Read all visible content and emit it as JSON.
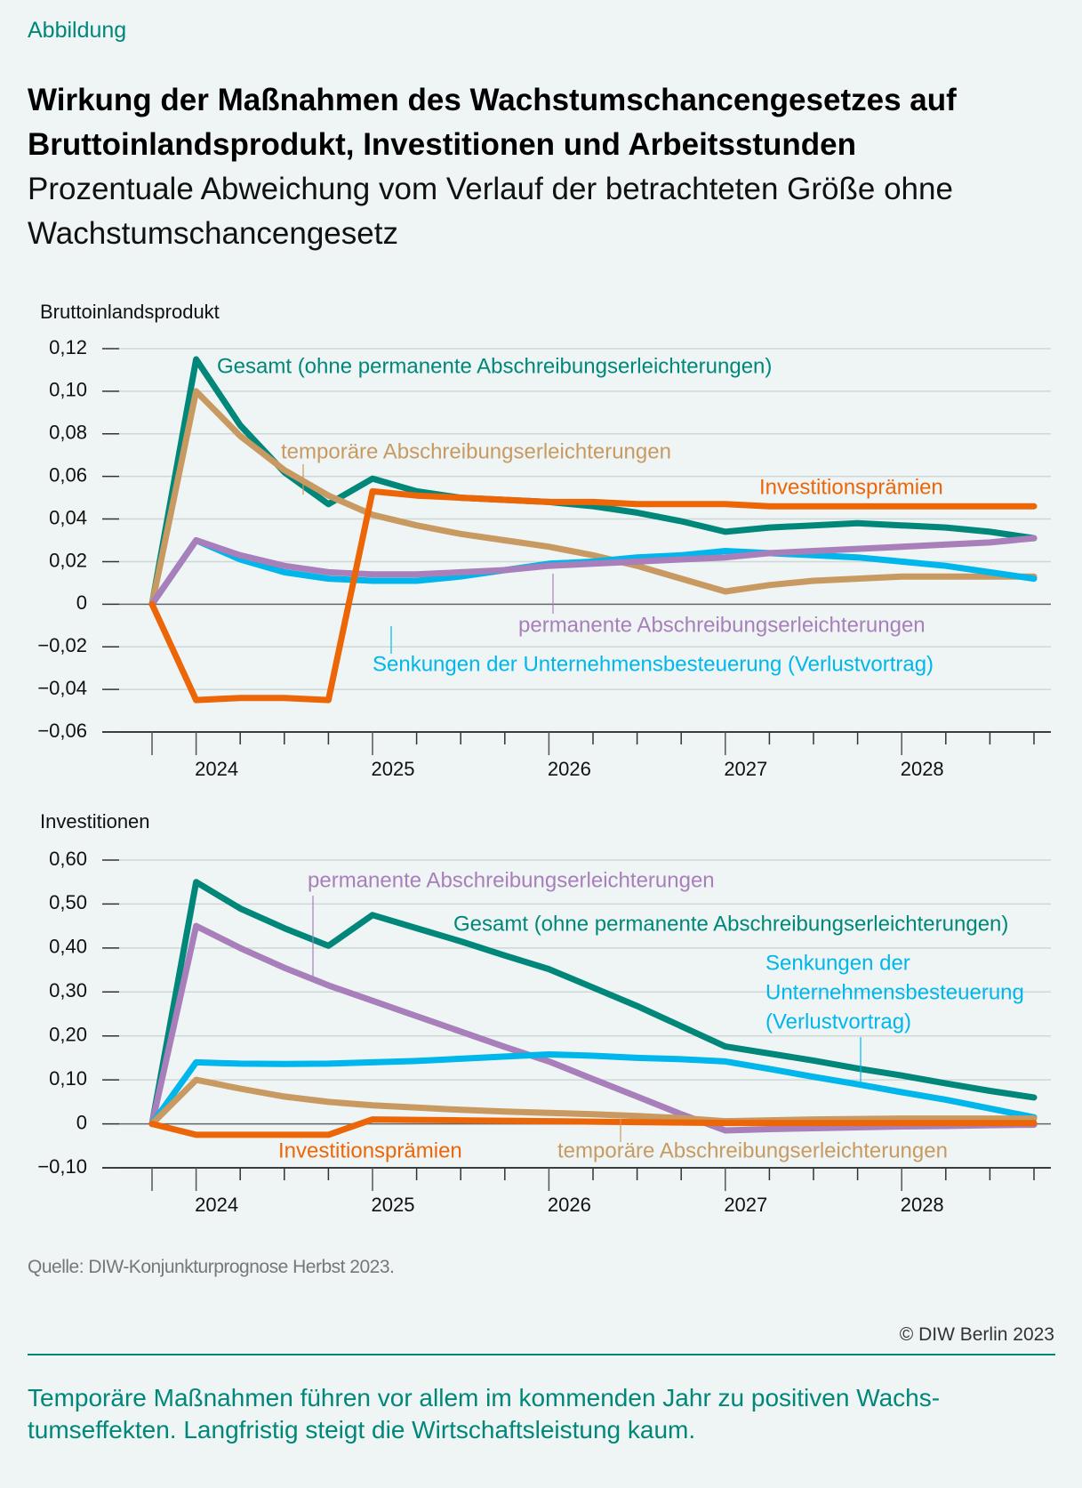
{
  "header": {
    "kicker": "Abbildung",
    "title": "Wirkung der Maßnahmen des Wachstumschancengesetzes auf Bruttoinlandsprodukt, Investitionen und Arbeitsstunden",
    "subtitle": "Prozentuale Abweichung vom Verlauf der betrachteten Größe ohne Wachstumschancengesetz"
  },
  "colors": {
    "gesamt": "#00877a",
    "temporaer": "#c89a62",
    "investitionspraemien": "#ec6608",
    "permanent": "#a87fba",
    "senkungen": "#00b6ea",
    "accent": "#00877a",
    "background": "#eef5f4"
  },
  "chart_data": [
    {
      "type": "line",
      "title": "Bruttoinlandsprodukt",
      "ylim": [
        -0.06,
        0.12
      ],
      "yticks": [
        0.12,
        0.1,
        0.08,
        0.06,
        0.04,
        0.02,
        0,
        -0.02,
        -0.04,
        -0.06
      ],
      "ytick_labels": [
        "0,12",
        "0,10",
        "0,08",
        "0,06",
        "0,04",
        "0,02",
        "0",
        "−0,02",
        "−0,04",
        "−0,06"
      ],
      "x": [
        "2023Q4",
        "2024Q1",
        "2024Q2",
        "2024Q3",
        "2024Q4",
        "2025Q1",
        "2025Q2",
        "2025Q3",
        "2025Q4",
        "2026Q1",
        "2026Q2",
        "2026Q3",
        "2026Q4",
        "2027Q1",
        "2027Q2",
        "2027Q3",
        "2027Q4",
        "2028Q1",
        "2028Q2",
        "2028Q3",
        "2028Q4"
      ],
      "xtick_labels": [
        "2024",
        "2025",
        "2026",
        "2027",
        "2028"
      ],
      "grid": true,
      "series": [
        {
          "name": "Gesamt (ohne permanente Abschreibungserleichterungen)",
          "color_key": "gesamt",
          "values": [
            0,
            0.115,
            0.084,
            0.062,
            0.047,
            0.059,
            0.053,
            0.05,
            0.049,
            0.048,
            0.046,
            0.043,
            0.039,
            0.034,
            0.036,
            0.037,
            0.038,
            0.037,
            0.036,
            0.034,
            0.031
          ]
        },
        {
          "name": "temporäre Abschreibungserleichterungen",
          "color_key": "temporaer",
          "values": [
            0,
            0.1,
            0.079,
            0.063,
            0.051,
            0.042,
            0.037,
            0.033,
            0.03,
            0.027,
            0.023,
            0.018,
            0.012,
            0.006,
            0.009,
            0.011,
            0.012,
            0.013,
            0.013,
            0.013,
            0.013
          ]
        },
        {
          "name": "Senkungen der Unternehmensbesteuerung (Verlustvortrag)",
          "color_key": "senkungen",
          "values": [
            0,
            0.03,
            0.021,
            0.015,
            0.012,
            0.011,
            0.011,
            0.013,
            0.016,
            0.019,
            0.02,
            0.022,
            0.023,
            0.025,
            0.024,
            0.023,
            0.022,
            0.02,
            0.018,
            0.015,
            0.012
          ]
        },
        {
          "name": "permanente Abschreibungserleichterungen",
          "color_key": "permanent",
          "values": [
            0,
            0.03,
            0.023,
            0.018,
            0.015,
            0.014,
            0.014,
            0.015,
            0.016,
            0.018,
            0.019,
            0.02,
            0.021,
            0.022,
            0.024,
            0.025,
            0.026,
            0.027,
            0.028,
            0.029,
            0.031
          ]
        },
        {
          "name": "Investitionsprämien",
          "color_key": "investitionspraemien",
          "values": [
            0,
            -0.045,
            -0.044,
            -0.044,
            -0.045,
            0.053,
            0.051,
            0.05,
            0.049,
            0.048,
            0.048,
            0.047,
            0.047,
            0.047,
            0.046,
            0.046,
            0.046,
            0.046,
            0.046,
            0.046,
            0.046
          ]
        }
      ],
      "annotations": [
        {
          "text": "Gesamt (ohne permanente Abschreibungserleichterungen)",
          "color_key": "gesamt"
        },
        {
          "text": "temporäre Abschreibungserleichterungen",
          "color_key": "temporaer"
        },
        {
          "text": "Investitionsprämien",
          "color_key": "investitionspraemien"
        },
        {
          "text": "permanente Abschreibungserleichterungen",
          "color_key": "permanent"
        },
        {
          "text": "Senkungen der Unternehmensbesteuerung (Verlustvortrag)",
          "color_key": "senkungen"
        }
      ]
    },
    {
      "type": "line",
      "title": "Investitionen",
      "ylim": [
        -0.1,
        0.6
      ],
      "yticks": [
        0.6,
        0.5,
        0.4,
        0.3,
        0.2,
        0.1,
        0,
        -0.1
      ],
      "ytick_labels": [
        "0,60",
        "0,50",
        "0,40",
        "0,30",
        "0,20",
        "0,10",
        "0",
        "−0,10"
      ],
      "x": [
        "2023Q4",
        "2024Q1",
        "2024Q2",
        "2024Q3",
        "2024Q4",
        "2025Q1",
        "2025Q2",
        "2025Q3",
        "2025Q4",
        "2026Q1",
        "2026Q2",
        "2026Q3",
        "2026Q4",
        "2027Q1",
        "2027Q2",
        "2027Q3",
        "2027Q4",
        "2028Q1",
        "2028Q2",
        "2028Q3",
        "2028Q4"
      ],
      "xtick_labels": [
        "2024",
        "2025",
        "2026",
        "2027",
        "2028"
      ],
      "grid": true,
      "series": [
        {
          "name": "Gesamt (ohne permanente Abschreibungserleichterungen)",
          "color_key": "gesamt",
          "values": [
            0,
            0.55,
            0.49,
            0.445,
            0.405,
            0.475,
            0.445,
            0.415,
            0.383,
            0.352,
            0.31,
            0.268,
            0.222,
            0.176,
            0.16,
            0.144,
            0.126,
            0.11,
            0.092,
            0.075,
            0.06
          ]
        },
        {
          "name": "permanente Abschreibungserleichterungen",
          "color_key": "permanent",
          "values": [
            0,
            0.45,
            0.4,
            0.355,
            0.315,
            0.28,
            0.245,
            0.21,
            0.175,
            0.142,
            0.102,
            0.062,
            0.022,
            -0.015,
            -0.012,
            -0.01,
            -0.008,
            -0.006,
            -0.005,
            -0.003,
            -0.002
          ]
        },
        {
          "name": "Senkungen der Unternehmensbesteuerung (Verlustvortrag)",
          "color_key": "senkungen",
          "values": [
            0,
            0.14,
            0.137,
            0.136,
            0.137,
            0.14,
            0.143,
            0.148,
            0.153,
            0.158,
            0.155,
            0.15,
            0.147,
            0.142,
            0.125,
            0.107,
            0.09,
            0.072,
            0.055,
            0.035,
            0.015
          ]
        },
        {
          "name": "temporäre Abschreibungserleichterungen",
          "color_key": "temporaer",
          "values": [
            0,
            0.1,
            0.08,
            0.062,
            0.05,
            0.042,
            0.037,
            0.032,
            0.028,
            0.025,
            0.022,
            0.018,
            0.013,
            0.006,
            0.008,
            0.01,
            0.011,
            0.012,
            0.012,
            0.012,
            0.012
          ]
        },
        {
          "name": "Investitionsprämien",
          "color_key": "investitionspraemien",
          "values": [
            0,
            -0.025,
            -0.025,
            -0.025,
            -0.025,
            0.01,
            0.009,
            0.008,
            0.007,
            0.006,
            0.005,
            0.004,
            0.003,
            0.002,
            0.002,
            0.002,
            0.002,
            0.002,
            0.002,
            0.002,
            0.002
          ]
        }
      ],
      "annotations": [
        {
          "text": "permanente Abschreibungserleichterungen",
          "color_key": "permanent"
        },
        {
          "text": "Gesamt (ohne permanente Abschreibungserleichterungen)",
          "color_key": "gesamt"
        },
        {
          "text": [
            "Senkungen der",
            "Unternehmensbesteuerung",
            "(Verlustvortrag)"
          ],
          "color_key": "senkungen"
        },
        {
          "text": "Investitionsprämien",
          "color_key": "investitionspraemien"
        },
        {
          "text": "temporäre Abschreibungserleichterungen",
          "color_key": "temporaer"
        }
      ]
    }
  ],
  "footer": {
    "source": "Quelle: DIW-Konjunkturprognose Herbst 2023.",
    "copyright": "© DIW Berlin 2023",
    "takeaway": "Temporäre Maßnahmen führen vor allem im kommenden Jahr zu positiven Wachs­tumseffekten. Langfristig steigt die Wirtschaftsleistung kaum."
  }
}
